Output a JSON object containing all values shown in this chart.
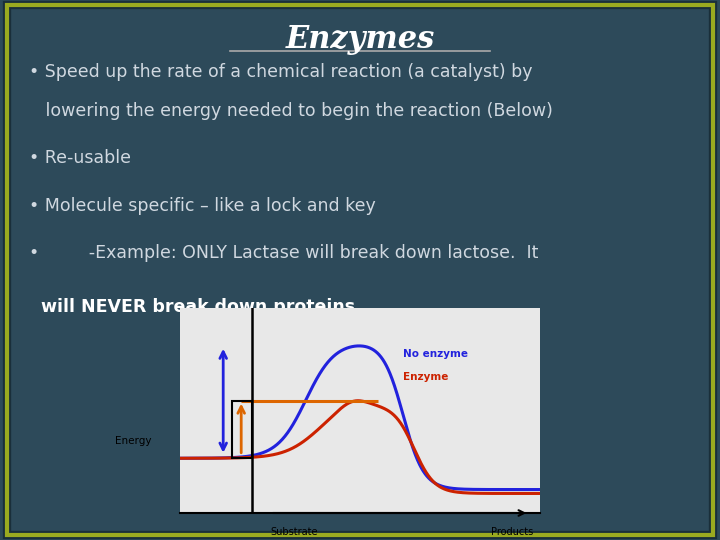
{
  "title": "Enzymes",
  "background_color": "#2d4a5a",
  "border_color": "#9aaa20",
  "title_color": "#ffffff",
  "bullet_color": "#d0d8e0",
  "bold_color": "#ffffff",
  "graph_bg": "#e8e8e8",
  "graph_x_label": "Substrate",
  "graph_y_label": "Energy",
  "graph_products_label": "Products",
  "no_enzyme_label": "No enzyme",
  "enzyme_label": "Enzyme",
  "no_enzyme_color": "#2222dd",
  "enzyme_color": "#cc2200",
  "arrow_orange": "#dd6600",
  "arrow_blue": "#2222dd"
}
